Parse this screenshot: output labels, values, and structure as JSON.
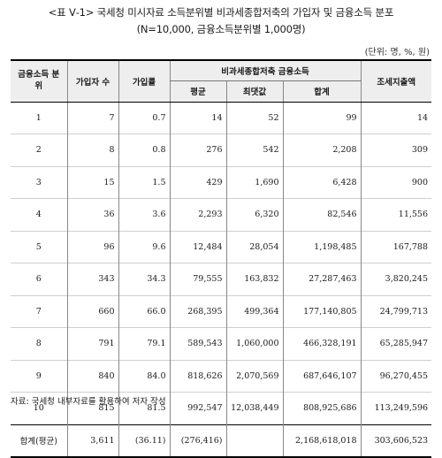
{
  "title": "<표 Ⅴ-1> 국세청 미시자료 소득분위별 비과세종합저축의 가입자 및 금융소득 분포",
  "subtitle": "(N=10,000, 금융소득분위별 1,000명)",
  "unit_note": "(단위: 명, %, 원)",
  "table": {
    "headers": {
      "quintile": "금융소득 분위",
      "subscribers": "가입자 수",
      "rate": "가입률",
      "group": "비과세종합저축 금융소득",
      "average": "평균",
      "maximum": "최댓값",
      "total": "합계",
      "tax_expenditure": "조세지출액"
    },
    "rows": [
      {
        "level": "1",
        "subscribers": "7",
        "rate": "0.7",
        "average": "14",
        "maximum": "52",
        "total": "99",
        "tax": "14"
      },
      {
        "level": "2",
        "subscribers": "8",
        "rate": "0.8",
        "average": "276",
        "maximum": "542",
        "total": "2,208",
        "tax": "309"
      },
      {
        "level": "3",
        "subscribers": "15",
        "rate": "1.5",
        "average": "429",
        "maximum": "1,690",
        "total": "6,428",
        "tax": "900"
      },
      {
        "level": "4",
        "subscribers": "36",
        "rate": "3.6",
        "average": "2,293",
        "maximum": "6,320",
        "total": "82,546",
        "tax": "11,556"
      },
      {
        "level": "5",
        "subscribers": "96",
        "rate": "9.6",
        "average": "12,484",
        "maximum": "28,054",
        "total": "1,198,485",
        "tax": "167,788"
      },
      {
        "level": "6",
        "subscribers": "343",
        "rate": "34.3",
        "average": "79,555",
        "maximum": "163,832",
        "total": "27,287,463",
        "tax": "3,820,245"
      },
      {
        "level": "7",
        "subscribers": "660",
        "rate": "66.0",
        "average": "268,395",
        "maximum": "499,364",
        "total": "177,140,805",
        "tax": "24,799,713"
      },
      {
        "level": "8",
        "subscribers": "791",
        "rate": "79.1",
        "average": "589,543",
        "maximum": "1,060,000",
        "total": "466,328,191",
        "tax": "65,285,947"
      },
      {
        "level": "9",
        "subscribers": "840",
        "rate": "84.0",
        "average": "818,626",
        "maximum": "2,070,569",
        "total": "687,646,107",
        "tax": "96,270,455"
      },
      {
        "level": "10",
        "subscribers": "815",
        "rate": "81.5",
        "average": "992,547",
        "maximum": "12,038,449",
        "total": "808,925,686",
        "tax": "113,249,596"
      }
    ],
    "total_row": {
      "level": "합계(평균)",
      "subscribers": "3,611",
      "rate": "(36.11)",
      "average": "(276,416)",
      "maximum": "",
      "total": "2,168,618,018",
      "tax": "303,606,523"
    }
  },
  "source": "자료: 국세청 내부자료를 활용하여 저자 작성"
}
